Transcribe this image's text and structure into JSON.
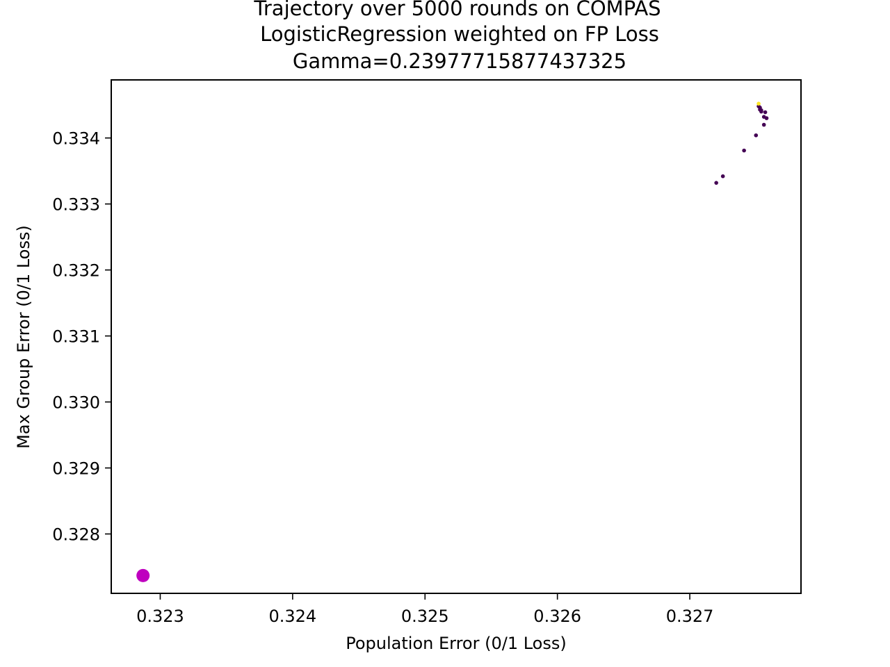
{
  "chart_data": {
    "type": "scatter",
    "title_lines": [
      "Trajectory over 5000 rounds on COMPAS",
      "LogisticRegression weighted on FP Loss",
      "Gamma=0.23977715877437325"
    ],
    "xlabel": "Population Error (0/1 Loss)",
    "ylabel": "Max Group Error (0/1 Loss)",
    "xlim": [
      0.32263,
      0.32784
    ],
    "ylim": [
      0.3271,
      0.33488
    ],
    "xticks": [
      0.323,
      0.324,
      0.325,
      0.326,
      0.327
    ],
    "xtick_labels": [
      "0.323",
      "0.324",
      "0.325",
      "0.326",
      "0.327"
    ],
    "yticks": [
      0.328,
      0.329,
      0.33,
      0.331,
      0.332,
      0.333,
      0.334
    ],
    "ytick_labels": [
      "0.328",
      "0.329",
      "0.330",
      "0.331",
      "0.332",
      "0.333",
      "0.334"
    ],
    "grid": false,
    "series": [
      {
        "color": "#440154",
        "points": [
          [
            0.3272,
            0.33332
          ],
          [
            0.32725,
            0.33342
          ],
          [
            0.32741,
            0.33381
          ],
          [
            0.3275,
            0.33404
          ],
          [
            0.32756,
            0.3342
          ],
          [
            0.32758,
            0.3343
          ],
          [
            0.32756,
            0.33432
          ],
          [
            0.32757,
            0.33439
          ],
          [
            0.32754,
            0.3344
          ],
          [
            0.32753,
            0.33443
          ],
          [
            0.32754,
            0.33442
          ],
          [
            0.32753,
            0.33446
          ],
          [
            0.32752,
            0.33448
          ]
        ]
      },
      {
        "color": "#fde725",
        "points": [
          [
            0.32752,
            0.33452
          ]
        ]
      },
      {
        "color": "#bf00bf",
        "points": [
          [
            0.32287,
            0.32737
          ]
        ]
      }
    ]
  }
}
